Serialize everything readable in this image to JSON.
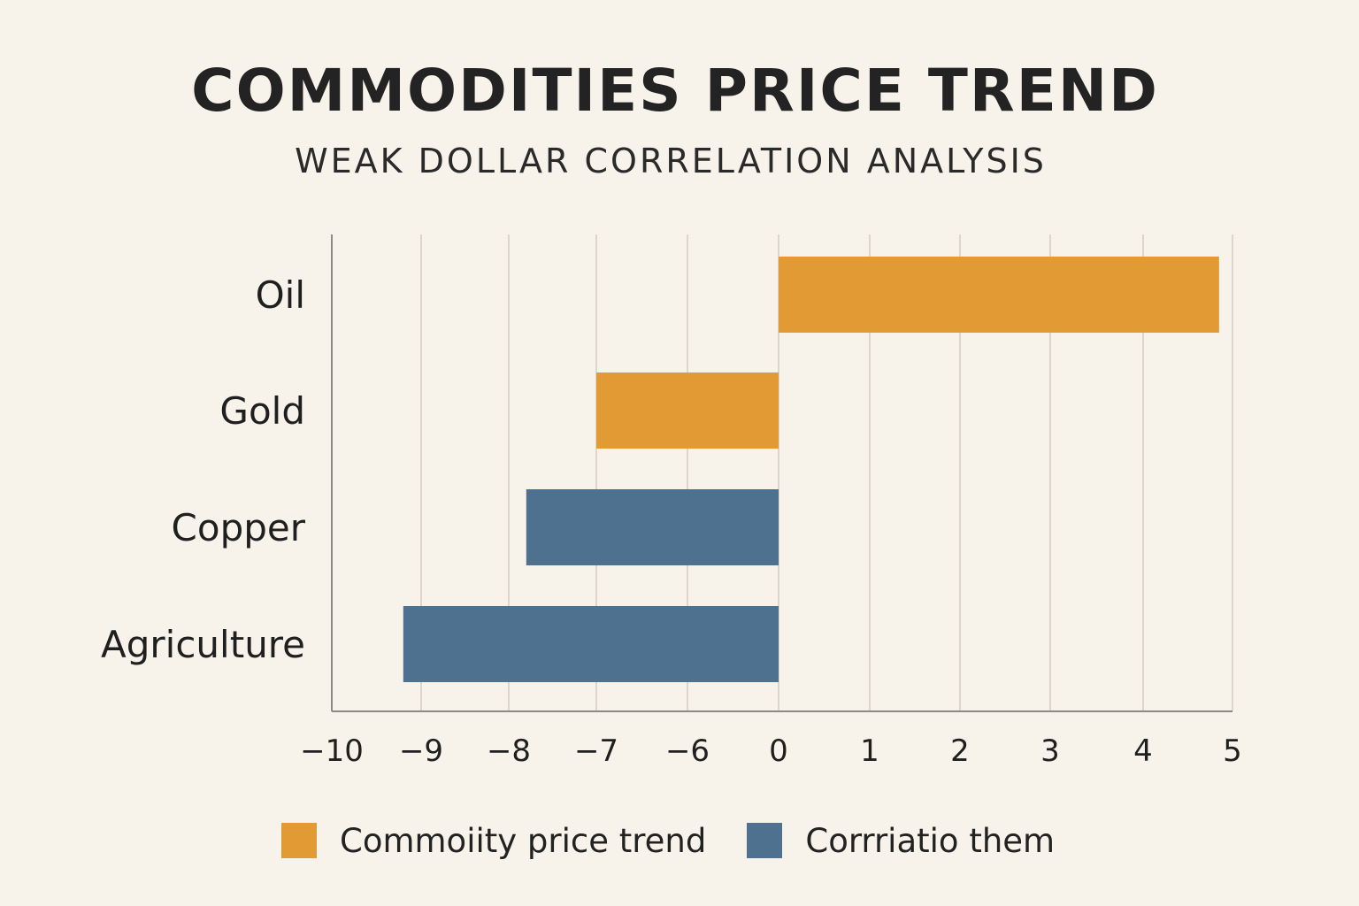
{
  "chart_data": {
    "type": "bar",
    "orientation": "horizontal",
    "title": "COMMODITIES PRICE TREND",
    "subtitle": "WEAK DOLLAR CORRELATION ANALYSIS",
    "xlabel": "",
    "ylabel": "",
    "categories": [
      "Oil",
      "Gold",
      "Copper",
      "Agriculture"
    ],
    "values": [
      4.85,
      -7,
      -7.8,
      -9.2
    ],
    "bar_series": [
      "Commoiity price trend",
      "Commoiity price trend",
      "Corrriatio them",
      "Corrriatio them"
    ],
    "x_ticks": [
      "−10",
      "−9",
      "−8",
      "−7",
      "−6",
      "0",
      "1",
      "2",
      "3",
      "4",
      "5"
    ],
    "x_tick_values": [
      -10,
      -9,
      -8,
      -7,
      -6,
      0,
      1,
      2,
      3,
      4,
      5
    ],
    "xlim": [
      -10,
      5
    ],
    "grid": true,
    "series": [
      {
        "name": "Commoiity price trend",
        "color": "#e29b34"
      },
      {
        "name": "Corrriatio them",
        "color": "#4e718f"
      }
    ],
    "legend_position": "bottom"
  },
  "colors": {
    "background": "#f8f3ea",
    "grid": "#dcd6cb",
    "axis": "#8d8a85"
  }
}
